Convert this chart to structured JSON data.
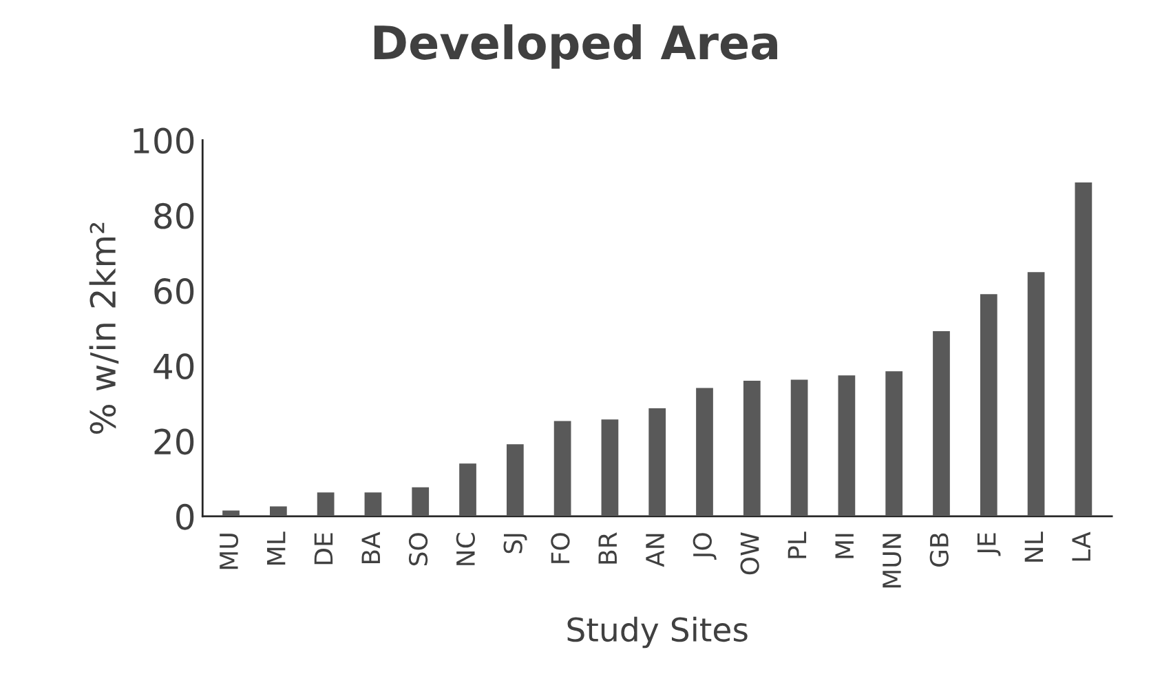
{
  "chart_data": {
    "type": "bar",
    "title": "Developed Area",
    "xlabel": "Study Sites",
    "ylabel": "% w/in 2km²",
    "categories": [
      "MU",
      "ML",
      "DE",
      "BA",
      "SO",
      "NC",
      "SJ",
      "FO",
      "BR",
      "AN",
      "JO",
      "OW",
      "PL",
      "MI",
      "MUN",
      "GB",
      "JE",
      "NL",
      "LA"
    ],
    "values": [
      1.8,
      2.9,
      6.6,
      6.6,
      8,
      14.3,
      19.4,
      25.6,
      26,
      29,
      34.4,
      36.3,
      36.6,
      37.7,
      38.8,
      49.5,
      59.3,
      65.2,
      89
    ],
    "color": "#595959",
    "ylim": [
      0,
      100
    ],
    "yticks": [
      0,
      20,
      40,
      60,
      80,
      100
    ],
    "grid": false,
    "legend": false
  }
}
